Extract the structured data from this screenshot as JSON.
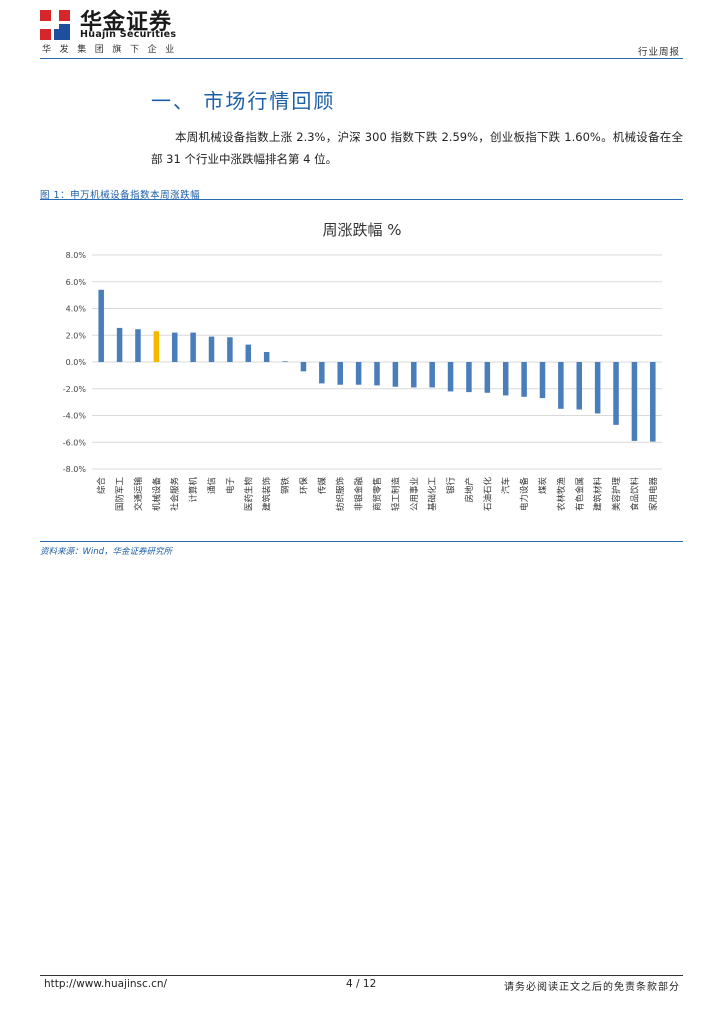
{
  "header": {
    "brand_cn": "华金证券",
    "brand_en": "Huajin Securities",
    "tagline": "华发集团旗下企业",
    "report_type": "行业周报",
    "logo_colors": {
      "red": "#d6262a",
      "blue": "#1d4f9c"
    }
  },
  "section": {
    "title": "一、 市场行情回顾",
    "paragraph": "本周机械设备指数上涨 2.3%，沪深 300 指数下跌 2.59%，创业板指下跌 1.60%。机械设备在全部 31 个行业中涨跌幅排名第 4 位。"
  },
  "figure": {
    "caption": "图 1：申万机械设备指数本周涨跌幅",
    "source": "资料来源：Wind，华金证券研究所"
  },
  "chart_data": {
    "type": "bar",
    "title": "周涨跌幅 %",
    "ylim": [
      -8,
      8
    ],
    "yticks": [
      "8.0%",
      "6.0%",
      "4.0%",
      "2.0%",
      "0.0%",
      "-2.0%",
      "-4.0%",
      "-6.0%",
      "-8.0%"
    ],
    "ytick_values": [
      8,
      6,
      4,
      2,
      0,
      -2,
      -4,
      -6,
      -8
    ],
    "grid": true,
    "bar_color": "#4a7ebb",
    "highlight_color": "#f5b800",
    "highlight_category": "机械设备",
    "categories": [
      "综合",
      "国防军工",
      "交通运输",
      "机械设备",
      "社会服务",
      "计算机",
      "通信",
      "电子",
      "医药生物",
      "建筑装饰",
      "钢铁",
      "环保",
      "传媒",
      "纺织服饰",
      "非银金融",
      "商贸零售",
      "轻工制造",
      "公用事业",
      "基础化工",
      "银行",
      "房地产",
      "石油石化",
      "汽车",
      "电力设备",
      "煤炭",
      "农林牧渔",
      "有色金属",
      "建筑材料",
      "美容护理",
      "食品饮料",
      "家用电器"
    ],
    "values": [
      5.4,
      2.55,
      2.45,
      2.3,
      2.2,
      2.2,
      1.9,
      1.85,
      1.3,
      0.75,
      0.05,
      -0.7,
      -1.6,
      -1.7,
      -1.7,
      -1.75,
      -1.85,
      -1.9,
      -1.9,
      -2.2,
      -2.25,
      -2.3,
      -2.5,
      -2.6,
      -2.7,
      -3.5,
      -3.55,
      -3.85,
      -4.7,
      -5.9,
      -5.95
    ]
  },
  "footer": {
    "url": "http://www.huajinsc.cn/",
    "page": "4 / 12",
    "disclaimer": "请务必阅读正文之后的免责条款部分"
  }
}
